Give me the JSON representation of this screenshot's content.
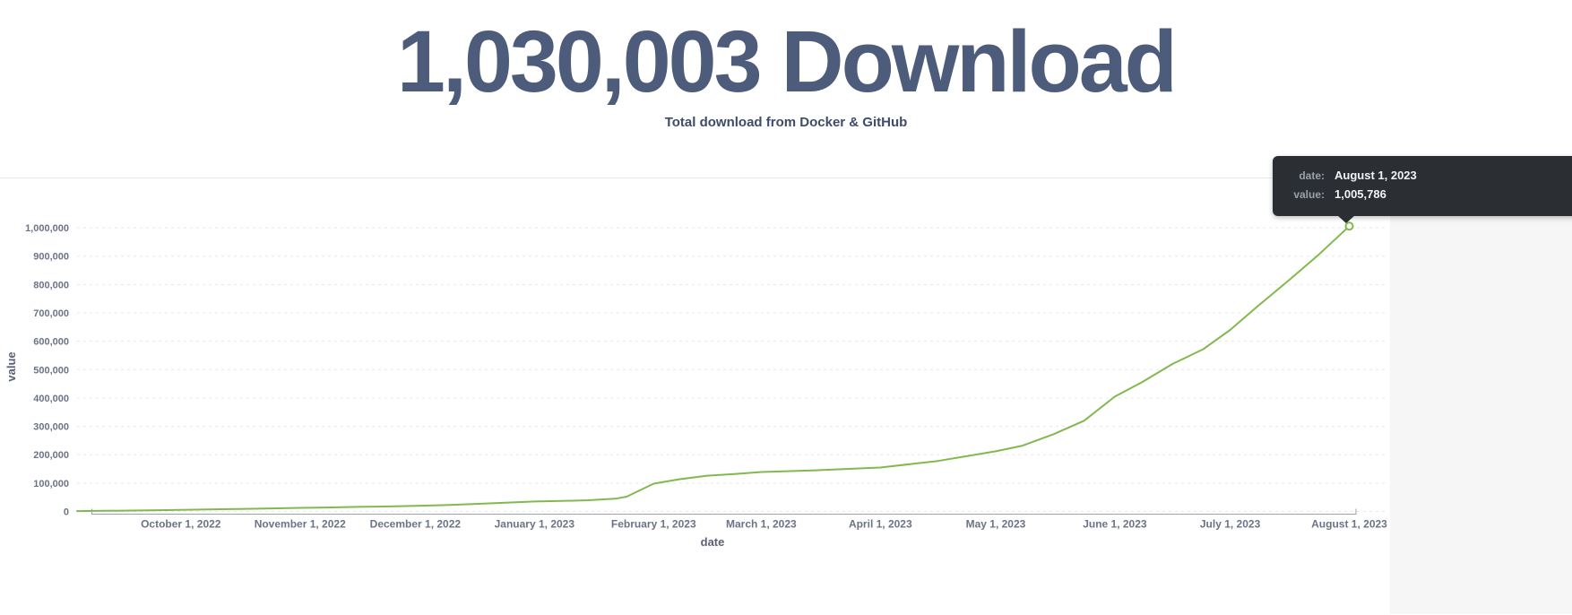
{
  "header": {
    "title": "1,030,003 Download",
    "subtitle": "Total download from Docker & GitHub"
  },
  "colors": {
    "title_text": "#4d5c7b",
    "line": "#82b94e",
    "tooltip_background": "#2b2f34",
    "tick_text": "#6b7486",
    "right_gutter": "#f6f6f7"
  },
  "chart_data": {
    "type": "line",
    "title": "",
    "xlabel": "date",
    "ylabel": "value",
    "grid": "horizontal-dashed",
    "legend_position": "none",
    "line_color": "#82b94e",
    "x_domain": [
      "2022-09-04",
      "2023-08-01"
    ],
    "ylim": [
      0,
      1000000
    ],
    "y_tick_step": 100000,
    "x_ticks": [
      {
        "date": "2022-10-01",
        "label": "October 1, 2022"
      },
      {
        "date": "2022-11-01",
        "label": "November 1, 2022"
      },
      {
        "date": "2022-12-01",
        "label": "December 1, 2022"
      },
      {
        "date": "2023-01-01",
        "label": "January 1, 2023"
      },
      {
        "date": "2023-02-01",
        "label": "February 1, 2023"
      },
      {
        "date": "2023-03-01",
        "label": "March 1, 2023"
      },
      {
        "date": "2023-04-01",
        "label": "April 1, 2023"
      },
      {
        "date": "2023-05-01",
        "label": "May 1, 2023"
      },
      {
        "date": "2023-06-01",
        "label": "June 1, 2023"
      },
      {
        "date": "2023-07-01",
        "label": "July 1, 2023"
      },
      {
        "date": "2023-08-01",
        "label": "August 1, 2023"
      }
    ],
    "series": [
      {
        "name": "value",
        "points": [
          {
            "date": "2022-09-04",
            "value": 1200
          },
          {
            "date": "2022-09-11",
            "value": 2200
          },
          {
            "date": "2022-09-18",
            "value": 3200
          },
          {
            "date": "2022-09-25",
            "value": 4300
          },
          {
            "date": "2022-10-01",
            "value": 5500
          },
          {
            "date": "2022-10-08",
            "value": 7000
          },
          {
            "date": "2022-10-16",
            "value": 9000
          },
          {
            "date": "2022-10-23",
            "value": 10500
          },
          {
            "date": "2022-11-01",
            "value": 12500
          },
          {
            "date": "2022-11-08",
            "value": 14000
          },
          {
            "date": "2022-11-16",
            "value": 16000
          },
          {
            "date": "2022-11-23",
            "value": 17500
          },
          {
            "date": "2022-12-01",
            "value": 19500
          },
          {
            "date": "2022-12-08",
            "value": 22000
          },
          {
            "date": "2022-12-16",
            "value": 26000
          },
          {
            "date": "2022-12-23",
            "value": 30000
          },
          {
            "date": "2023-01-01",
            "value": 35000
          },
          {
            "date": "2023-01-08",
            "value": 37000
          },
          {
            "date": "2023-01-15",
            "value": 39500
          },
          {
            "date": "2023-01-22",
            "value": 45000
          },
          {
            "date": "2023-01-25",
            "value": 52000
          },
          {
            "date": "2023-02-01",
            "value": 98000
          },
          {
            "date": "2023-02-08",
            "value": 114000
          },
          {
            "date": "2023-02-15",
            "value": 126000
          },
          {
            "date": "2023-02-22",
            "value": 132000
          },
          {
            "date": "2023-03-01",
            "value": 139000
          },
          {
            "date": "2023-03-15",
            "value": 145000
          },
          {
            "date": "2023-04-01",
            "value": 155000
          },
          {
            "date": "2023-04-16",
            "value": 178000
          },
          {
            "date": "2023-05-01",
            "value": 212000
          },
          {
            "date": "2023-05-08",
            "value": 232000
          },
          {
            "date": "2023-05-16",
            "value": 272000
          },
          {
            "date": "2023-05-24",
            "value": 320000
          },
          {
            "date": "2023-06-01",
            "value": 405000
          },
          {
            "date": "2023-06-08",
            "value": 455000
          },
          {
            "date": "2023-06-16",
            "value": 520000
          },
          {
            "date": "2023-06-24",
            "value": 572000
          },
          {
            "date": "2023-07-01",
            "value": 640000
          },
          {
            "date": "2023-07-08",
            "value": 722000
          },
          {
            "date": "2023-07-16",
            "value": 812000
          },
          {
            "date": "2023-07-24",
            "value": 905000
          },
          {
            "date": "2023-08-01",
            "value": 1005786
          }
        ]
      }
    ],
    "tooltip": {
      "rows": [
        {
          "label": "date:",
          "value": "August 1, 2023"
        },
        {
          "label": "value:",
          "value": "1,005,786"
        }
      ],
      "anchor": {
        "date": "2023-08-01",
        "value": 1005786
      }
    }
  }
}
